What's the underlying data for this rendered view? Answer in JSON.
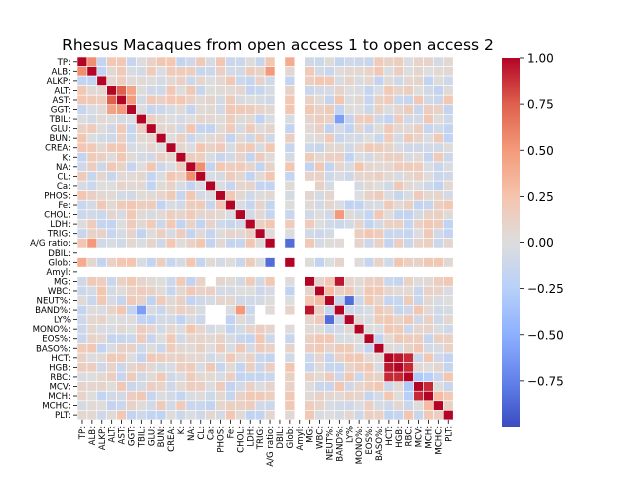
{
  "chart_data": {
    "type": "heatmap",
    "title": "Rhesus Macaques from open access 1 to open access 2",
    "labels": [
      "TP:",
      "ALB:",
      "ALKP:",
      "ALT:",
      "AST:",
      "GGT:",
      "TBIL:",
      "GLU:",
      "BUN:",
      "CREA:",
      "K:",
      "NA:",
      "CL:",
      "Ca:",
      "PHOS:",
      "Fe:",
      "CHOL:",
      "LDH:",
      "TRIG:",
      "A/G ratio:",
      "DBIL:",
      "Glob:",
      "Amyl:",
      "MG:",
      "WBC:",
      "NEUT%:",
      "BAND%:",
      "LY%",
      "MONO%:",
      "EOS%:",
      "BASO%:",
      "HCT:",
      "HGB:",
      "RBC:",
      "MCV:",
      "MCH:",
      "MCHC:",
      "PLT:"
    ],
    "missing_rows": [
      "DBIL:",
      "Amyl:"
    ],
    "partial_missing": {
      "Ca:": [
        "MG:",
        "BAND%:",
        "LY%"
      ],
      "PHOS:": [
        "BAND%:",
        "LY%"
      ],
      "TRIG:": [
        "BAND%:",
        "LY%"
      ],
      "A/G ratio:": [
        "LY%"
      ],
      "Glob:": [
        "LY%"
      ]
    },
    "strong_correlations": [
      {
        "a": "TP:",
        "b": "ALB:",
        "value": 0.55
      },
      {
        "a": "ALT:",
        "b": "AST:",
        "value": 0.75
      },
      {
        "a": "ALT:",
        "b": "GGT:",
        "value": 0.45
      },
      {
        "a": "AST:",
        "b": "GGT:",
        "value": 0.5
      },
      {
        "a": "TP:",
        "b": "Glob:",
        "value": 0.4
      },
      {
        "a": "A/G ratio:",
        "b": "ALB:",
        "value": 0.5
      },
      {
        "a": "A/G ratio:",
        "b": "Glob:",
        "value": -0.85
      },
      {
        "a": "K:",
        "b": "NA:",
        "value": 0.15
      },
      {
        "a": "NA:",
        "b": "CL:",
        "value": 0.55
      },
      {
        "a": "CHOL:",
        "b": "BAND%:",
        "value": 0.5
      },
      {
        "a": "TBIL:",
        "b": "BAND%:",
        "value": -0.6
      },
      {
        "a": "ALB:",
        "b": "PLT:",
        "value": 0.05
      },
      {
        "a": "MG:",
        "b": "BAND%:",
        "value": 0.95
      },
      {
        "a": "WBC:",
        "b": "NEUT%:",
        "value": 0.3
      },
      {
        "a": "NEUT%:",
        "b": "LY%",
        "value": -0.85
      },
      {
        "a": "BAND%:",
        "b": "LY%",
        "value": -0.1
      },
      {
        "a": "HCT:",
        "b": "HGB:",
        "value": 0.95
      },
      {
        "a": "HCT:",
        "b": "RBC:",
        "value": 0.9
      },
      {
        "a": "HGB:",
        "b": "RBC:",
        "value": 0.9
      },
      {
        "a": "MCV:",
        "b": "MCH:",
        "value": 0.9
      },
      {
        "a": "MCV:",
        "b": "RBC:",
        "value": -0.3
      },
      {
        "a": "MCH:",
        "b": "RBC:",
        "value": -0.25
      },
      {
        "a": "MCHC:",
        "b": "MCH:",
        "value": 0.3
      },
      {
        "a": "PLT:",
        "b": "LDH:",
        "value": -0.2
      },
      {
        "a": "PLT:",
        "b": "MCV:",
        "value": -0.15
      },
      {
        "a": "PLT:",
        "b": "TBIL:",
        "value": -0.1
      }
    ],
    "zlim": [
      -1.0,
      1.0
    ],
    "colormap": "coolwarm",
    "colorbar_ticks": [
      "1.00",
      "0.75",
      "0.50",
      "0.25",
      "0.00",
      "−0.25",
      "−0.50",
      "−0.75"
    ],
    "grid": true
  }
}
